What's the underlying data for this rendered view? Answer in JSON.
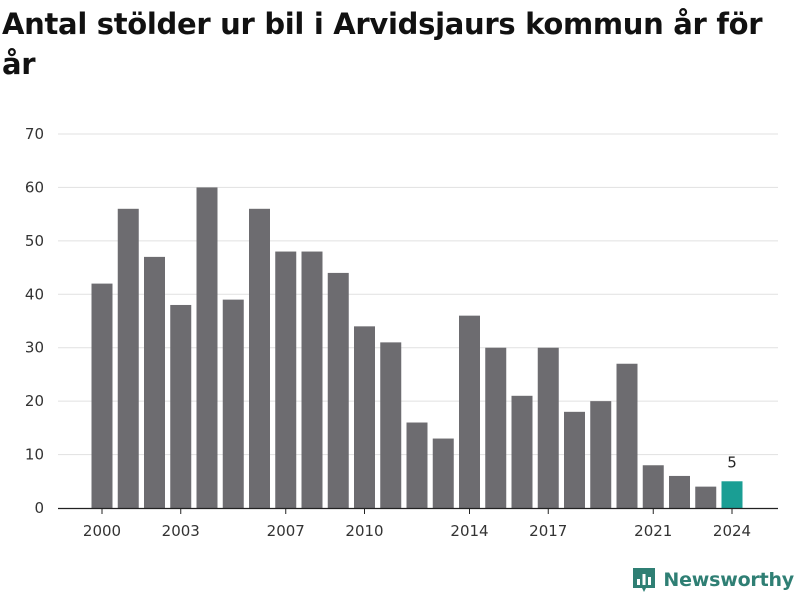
{
  "chart_data": {
    "type": "bar",
    "title": "Antal stölder ur bil i Arvidsjaurs kommun år för år",
    "xlabel": "",
    "ylabel": "",
    "x": [
      2000,
      2001,
      2002,
      2003,
      2004,
      2005,
      2006,
      2007,
      2008,
      2009,
      2010,
      2011,
      2012,
      2013,
      2014,
      2015,
      2016,
      2017,
      2018,
      2019,
      2020,
      2021,
      2022,
      2023,
      2024
    ],
    "values": [
      42,
      56,
      47,
      38,
      60,
      39,
      56,
      48,
      48,
      44,
      34,
      31,
      16,
      13,
      36,
      30,
      21,
      30,
      18,
      20,
      27,
      8,
      6,
      4,
      5
    ],
    "x_tick_labels": [
      "2000",
      "2003",
      "2007",
      "2010",
      "2014",
      "2017",
      "2021",
      "2024"
    ],
    "y_ticks": [
      0,
      10,
      20,
      30,
      40,
      50,
      60,
      70
    ],
    "ylim": [
      0,
      70
    ],
    "grid": "horizontal",
    "bar_color": "#6d6c70",
    "highlight_color": "#1a9e94",
    "highlight_index": 24,
    "data_labels": [
      {
        "index": 24,
        "text": "5"
      }
    ]
  },
  "brand": {
    "name": "Newsworthy",
    "icon": "newsworthy-logo-icon",
    "color": "#2f7f74"
  }
}
